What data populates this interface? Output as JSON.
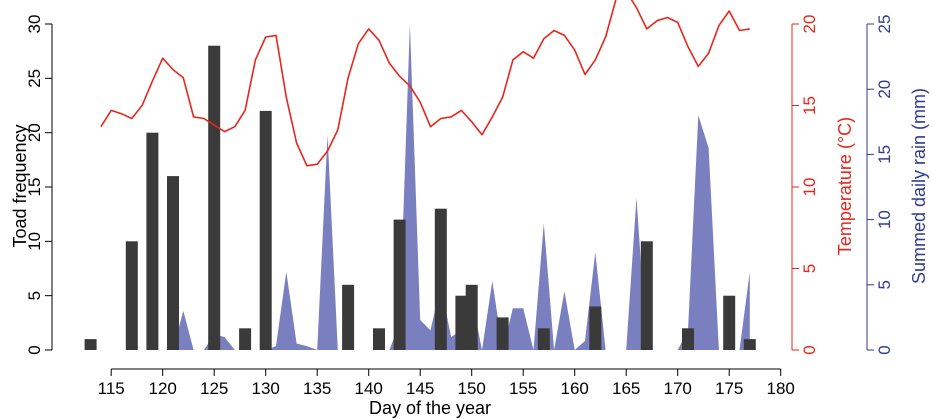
{
  "chart_data": {
    "type": "bar",
    "xlabel": "Day of the year",
    "xlim": [
      111,
      181
    ],
    "x_ticks": [
      115,
      120,
      125,
      130,
      135,
      140,
      145,
      150,
      155,
      160,
      165,
      170,
      175,
      180
    ],
    "axes": {
      "left": {
        "label": "Toad frequency",
        "ylim": [
          0,
          30
        ],
        "ticks": [
          0,
          5,
          10,
          15,
          20,
          25,
          30
        ],
        "color": "#000000"
      },
      "right_temperature": {
        "label": "Temperature (°C)",
        "ylim": [
          0,
          20
        ],
        "ticks": [
          0,
          5,
          10,
          15,
          20
        ],
        "color": "#e8261b"
      },
      "right_rain": {
        "label": "Summed daily rain (mm)",
        "ylim": [
          0,
          25
        ],
        "ticks": [
          0,
          5,
          10,
          15,
          20,
          25
        ],
        "color": "#2e3b8f"
      }
    },
    "series": [
      {
        "kind": "bar",
        "axis": "left",
        "color": "#3a3a3a",
        "points": [
          {
            "x": 113,
            "y": 1
          },
          {
            "x": 117,
            "y": 10
          },
          {
            "x": 119,
            "y": 20
          },
          {
            "x": 121,
            "y": 16
          },
          {
            "x": 125,
            "y": 28
          },
          {
            "x": 128,
            "y": 2
          },
          {
            "x": 130,
            "y": 22
          },
          {
            "x": 138,
            "y": 6
          },
          {
            "x": 141,
            "y": 2
          },
          {
            "x": 143,
            "y": 12
          },
          {
            "x": 147,
            "y": 13
          },
          {
            "x": 149,
            "y": 5
          },
          {
            "x": 150,
            "y": 6
          },
          {
            "x": 153,
            "y": 3
          },
          {
            "x": 157,
            "y": 2
          },
          {
            "x": 162,
            "y": 4
          },
          {
            "x": 167,
            "y": 10
          },
          {
            "x": 171,
            "y": 2
          },
          {
            "x": 175,
            "y": 5
          },
          {
            "x": 177,
            "y": 1
          }
        ]
      },
      {
        "kind": "line",
        "axis": "right_temperature",
        "color": "#e8261b",
        "x": [
          114,
          115,
          116,
          117,
          118,
          119,
          120,
          121,
          122,
          123,
          124,
          125,
          126,
          127,
          128,
          129,
          130,
          131,
          132,
          133,
          134,
          135,
          136,
          137,
          138,
          139,
          140,
          141,
          142,
          143,
          144,
          145,
          146,
          147,
          148,
          149,
          150,
          151,
          152,
          153,
          154,
          155,
          156,
          157,
          158,
          159,
          160,
          161,
          162,
          163,
          164,
          165,
          166,
          167,
          168,
          169,
          170,
          171,
          172,
          173,
          174,
          175,
          176,
          177
        ],
        "y": [
          13.7,
          14.7,
          14.5,
          14.2,
          15,
          16.5,
          17.9,
          17.2,
          16.7,
          14.3,
          14.2,
          13.8,
          13.4,
          13.7,
          14.7,
          17.8,
          19.2,
          19.3,
          15.5,
          12.7,
          11.3,
          11.4,
          12.2,
          13.5,
          16.7,
          18.8,
          19.7,
          19.0,
          17.6,
          16.8,
          16.2,
          15.2,
          13.7,
          14.2,
          14.3,
          14.7,
          14.0,
          13.2,
          14.3,
          15.5,
          17.8,
          18.3,
          17.9,
          19.1,
          19.6,
          19.3,
          18.4,
          16.9,
          17.8,
          19.2,
          21.5,
          22.0,
          21.0,
          19.7,
          20.2,
          20.4,
          20.1,
          18.6,
          17.4,
          18.2,
          19.9,
          20.8,
          19.6,
          19.7
        ]
      },
      {
        "kind": "area",
        "axis": "right_rain",
        "color": "#3b43a0",
        "opacity": 0.68,
        "x": [
          121,
          122,
          123,
          124,
          125,
          126,
          127,
          128,
          129,
          130,
          131,
          132,
          133,
          134,
          135,
          136,
          137,
          138,
          139,
          140,
          141,
          142,
          143,
          144,
          145,
          146,
          147,
          148,
          149,
          150,
          151,
          152,
          153,
          154,
          155,
          156,
          157,
          158,
          159,
          160,
          161,
          162,
          163,
          164,
          165,
          166,
          167,
          168,
          169,
          170,
          171,
          172,
          173,
          174,
          175,
          176,
          177
        ],
        "y": [
          0,
          3,
          0,
          0,
          1.2,
          1,
          0,
          0,
          0,
          0,
          0.3,
          6,
          0.5,
          0.3,
          0,
          16.5,
          0,
          0,
          0,
          0,
          0,
          0,
          2,
          25,
          2.3,
          1.5,
          5,
          1,
          1.5,
          4,
          0,
          5.3,
          0,
          3.2,
          3.2,
          0,
          9.7,
          0,
          4.5,
          0,
          0.7,
          7.5,
          0,
          0,
          0,
          11.7,
          0,
          0,
          0,
          0,
          1.5,
          18,
          15.5,
          0,
          0,
          0,
          6
        ]
      }
    ]
  }
}
